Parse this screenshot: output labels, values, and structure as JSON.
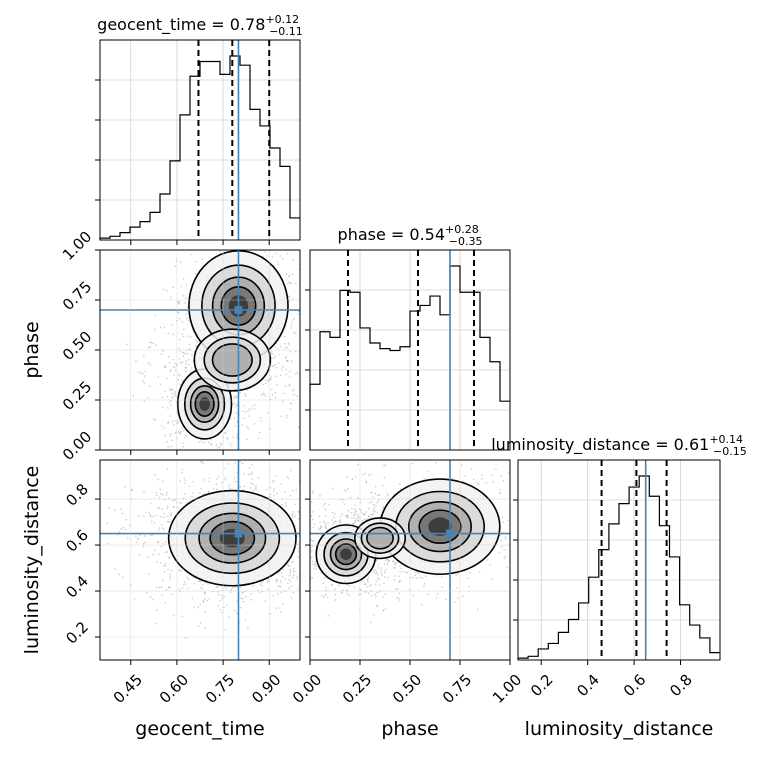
{
  "chart_data": {
    "type": "corner",
    "parameters": [
      {
        "name": "geocent_time",
        "axis_label": "geocent_time",
        "range": [
          0.35,
          1.0
        ],
        "ticks": [
          0.45,
          0.6,
          0.75,
          0.9
        ],
        "tick_labels": [
          "0.45",
          "0.60",
          "0.75",
          "0.90"
        ],
        "title": {
          "prefix": "geocent_time = ",
          "value": "0.78",
          "plus": "+0.12",
          "minus": "−0.11"
        },
        "truth": 0.8,
        "quantiles": [
          0.67,
          0.78,
          0.9
        ],
        "hist_edges_start": 0.35,
        "hist_bin_width": 0.0325,
        "hist_counts": [
          1,
          2,
          4,
          7,
          10,
          15,
          25,
          43,
          68,
          89,
          97,
          97,
          90,
          100,
          95,
          71,
          62,
          50,
          40,
          12
        ]
      },
      {
        "name": "phase",
        "axis_label": "phase",
        "range": [
          0.0,
          1.0
        ],
        "ticks": [
          0.0,
          0.25,
          0.5,
          0.75,
          1.0
        ],
        "tick_labels": [
          "0.00",
          "0.25",
          "0.50",
          "0.75",
          "1.00"
        ],
        "title": {
          "prefix": "phase = ",
          "value": "0.54",
          "plus": "+0.28",
          "minus": "−0.35"
        },
        "truth": 0.7,
        "quantiles": [
          0.19,
          0.54,
          0.82
        ],
        "hist_edges_start": 0.0,
        "hist_bin_width": 0.05,
        "hist_counts": [
          35,
          63,
          60,
          85,
          84,
          65,
          57,
          54,
          53,
          55,
          74,
          77,
          82,
          72,
          98,
          84,
          84,
          60,
          47,
          26
        ]
      },
      {
        "name": "luminosity_distance",
        "axis_label": "luminosity_distance",
        "range": [
          0.1,
          0.97
        ],
        "ticks": [
          0.2,
          0.4,
          0.6,
          0.8
        ],
        "tick_labels": [
          "0.2",
          "0.4",
          "0.6",
          "0.8"
        ],
        "tick_labels_y": [
          "0.2",
          "0.4",
          "0.6",
          "0.8"
        ],
        "title": {
          "prefix": "luminosity_distance = ",
          "value": "0.61",
          "plus": "+0.14",
          "minus": "−0.15"
        },
        "truth": 0.65,
        "quantiles": [
          0.46,
          0.61,
          0.74
        ],
        "hist_edges_start": 0.1,
        "hist_bin_width": 0.0435,
        "hist_counts": [
          1,
          2,
          6,
          9,
          15,
          22,
          31,
          45,
          60,
          74,
          85,
          94,
          100,
          89,
          73,
          56,
          30,
          19,
          12,
          4
        ]
      }
    ],
    "contour_peaks": {
      "geocent_time_vs_phase": [
        {
          "x": 0.8,
          "y": 0.72,
          "sx": 0.07,
          "sy": 0.12,
          "w": 1.0
        },
        {
          "x": 0.69,
          "y": 0.23,
          "sx": 0.04,
          "sy": 0.08,
          "w": 0.9
        },
        {
          "x": 0.78,
          "y": 0.45,
          "sx": 0.08,
          "sy": 0.1,
          "w": 0.45
        }
      ],
      "geocent_time_vs_luminosity_distance": [
        {
          "x": 0.78,
          "y": 0.63,
          "sx": 0.09,
          "sy": 0.09,
          "w": 1.0
        }
      ],
      "phase_vs_luminosity_distance": [
        {
          "x": 0.18,
          "y": 0.56,
          "sx": 0.07,
          "sy": 0.06,
          "w": 0.85
        },
        {
          "x": 0.65,
          "y": 0.68,
          "sx": 0.13,
          "sy": 0.09,
          "w": 1.0
        },
        {
          "x": 0.35,
          "y": 0.63,
          "sx": 0.1,
          "sy": 0.07,
          "w": 0.3
        }
      ]
    },
    "truth_color": "#4682b4",
    "grid": true
  }
}
